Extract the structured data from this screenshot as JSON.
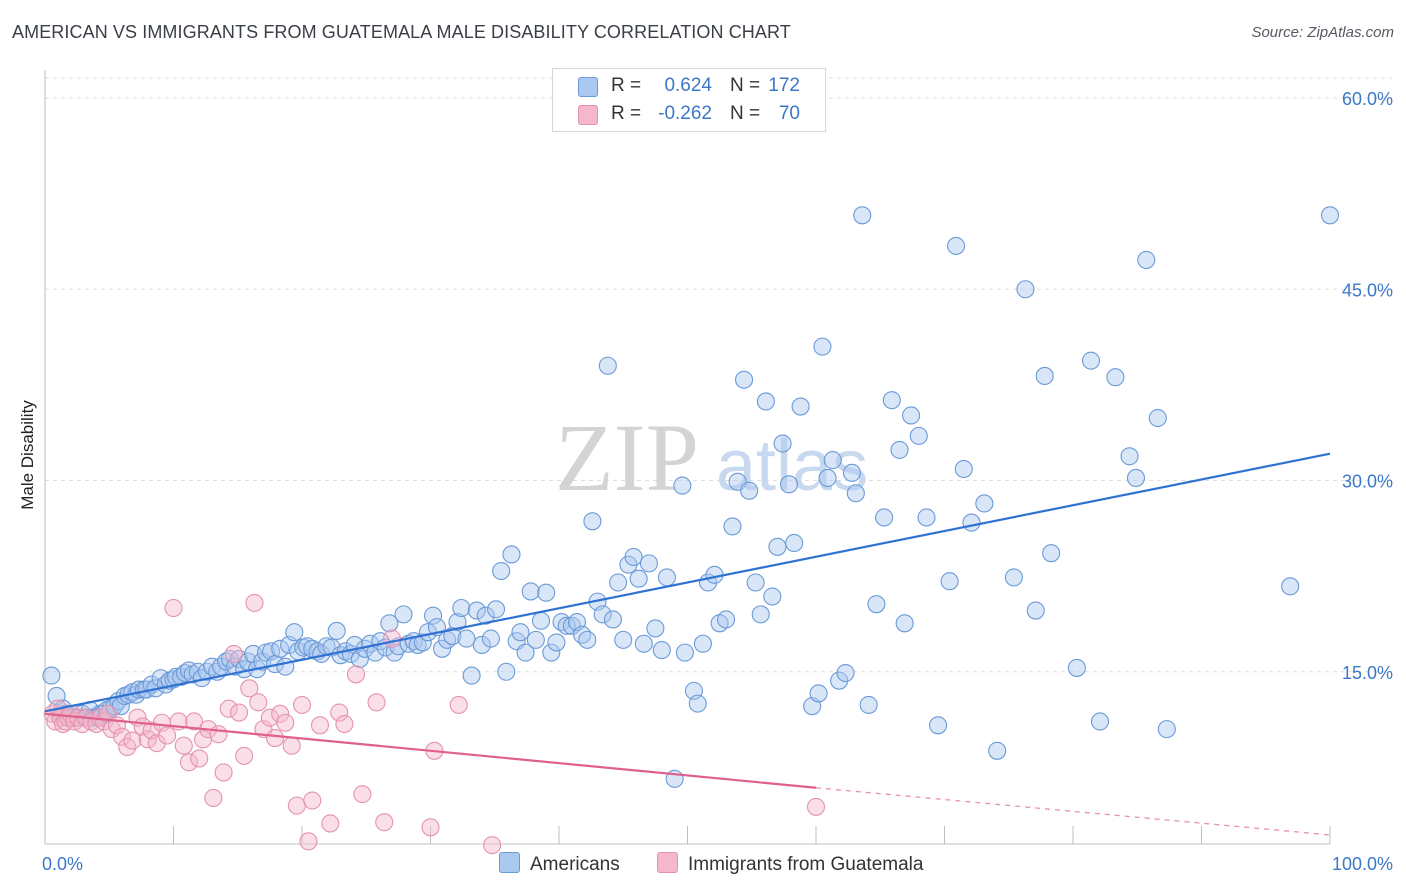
{
  "title": "AMERICAN VS IMMIGRANTS FROM GUATEMALA MALE DISABILITY CORRELATION CHART",
  "source": "Source: ZipAtlas.com",
  "watermark": {
    "zip": "ZIP",
    "atlas": "atlas"
  },
  "legend": {
    "r_label": "R =",
    "n_label": "N =",
    "rows": [
      {
        "r": "0.624",
        "n": "172",
        "swatch_fill": "#aac8f0",
        "swatch_stroke": "#6a9ad8"
      },
      {
        "r": "-0.262",
        "n": "70",
        "swatch_fill": "#f5b8cb",
        "swatch_stroke": "#e493ad"
      }
    ]
  },
  "bottom_legend": [
    {
      "label": "Americans",
      "swatch_fill": "#aac8f0",
      "swatch_stroke": "#6a9ad8"
    },
    {
      "label": "Immigrants from Guatemala",
      "swatch_fill": "#f5b8cb",
      "swatch_stroke": "#e493ad"
    }
  ],
  "chart_data": {
    "type": "scatter",
    "title": "AMERICAN VS IMMIGRANTS FROM GUATEMALA MALE DISABILITY CORRELATION CHART",
    "xlabel": "",
    "ylabel": "Male Disability",
    "xlim": [
      0,
      100
    ],
    "ylim": [
      0,
      62
    ],
    "x_tick_labels": [
      {
        "value": 0,
        "label": "0.0%"
      },
      {
        "value": 100,
        "label": "100.0%"
      }
    ],
    "y_tick_labels": [
      {
        "value": 15,
        "label": "15.0%"
      },
      {
        "value": 30,
        "label": "30.0%"
      },
      {
        "value": 45,
        "label": "45.0%"
      },
      {
        "value": 60,
        "label": "60.0%"
      }
    ],
    "grid": "horizontal dashed",
    "series": [
      {
        "name": "Americans",
        "color": "#6a9ad8",
        "fill": "#aac8f0",
        "trend": {
          "x": [
            0,
            100
          ],
          "y": [
            11.9,
            32.1
          ]
        },
        "points": [
          [
            0.5,
            14.7
          ],
          [
            0.9,
            13.1
          ],
          [
            1.2,
            11.7
          ],
          [
            1.4,
            12.1
          ],
          [
            1.7,
            11.7
          ],
          [
            2.0,
            11.4
          ],
          [
            2.2,
            11.4
          ],
          [
            2.5,
            11.4
          ],
          [
            2.9,
            11.7
          ],
          [
            3.1,
            11.4
          ],
          [
            3.5,
            12.0
          ],
          [
            3.7,
            11.4
          ],
          [
            3.9,
            11.4
          ],
          [
            4.1,
            11.4
          ],
          [
            4.3,
            11.7
          ],
          [
            4.5,
            11.7
          ],
          [
            4.8,
            12.0
          ],
          [
            5.1,
            12.1
          ],
          [
            5.4,
            12.3
          ],
          [
            5.7,
            12.7
          ],
          [
            5.9,
            12.3
          ],
          [
            6.2,
            13.1
          ],
          [
            6.5,
            13.2
          ],
          [
            6.8,
            13.4
          ],
          [
            7.1,
            13.2
          ],
          [
            7.3,
            13.6
          ],
          [
            7.7,
            13.6
          ],
          [
            7.9,
            13.6
          ],
          [
            8.3,
            14.0
          ],
          [
            8.6,
            13.7
          ],
          [
            9.0,
            14.5
          ],
          [
            9.4,
            14.0
          ],
          [
            9.7,
            14.3
          ],
          [
            10.0,
            14.4
          ],
          [
            10.2,
            14.6
          ],
          [
            10.6,
            14.6
          ],
          [
            10.9,
            14.9
          ],
          [
            11.2,
            15.1
          ],
          [
            11.5,
            14.8
          ],
          [
            11.9,
            15.0
          ],
          [
            12.2,
            14.5
          ],
          [
            12.6,
            15.0
          ],
          [
            13.0,
            15.4
          ],
          [
            13.4,
            15.0
          ],
          [
            13.7,
            15.4
          ],
          [
            14.1,
            15.8
          ],
          [
            14.4,
            16.0
          ],
          [
            14.8,
            15.4
          ],
          [
            15.1,
            16.0
          ],
          [
            15.5,
            15.2
          ],
          [
            15.8,
            15.8
          ],
          [
            16.2,
            16.4
          ],
          [
            16.5,
            15.2
          ],
          [
            16.9,
            15.8
          ],
          [
            17.2,
            16.5
          ],
          [
            17.6,
            16.6
          ],
          [
            17.9,
            15.6
          ],
          [
            18.3,
            16.8
          ],
          [
            18.7,
            15.4
          ],
          [
            19.0,
            17.1
          ],
          [
            19.4,
            18.1
          ],
          [
            19.7,
            16.6
          ],
          [
            20.1,
            16.9
          ],
          [
            20.4,
            17.0
          ],
          [
            20.8,
            16.8
          ],
          [
            21.2,
            16.6
          ],
          [
            21.5,
            16.4
          ],
          [
            21.9,
            17.0
          ],
          [
            22.3,
            16.9
          ],
          [
            22.7,
            18.2
          ],
          [
            23.0,
            16.3
          ],
          [
            23.4,
            16.6
          ],
          [
            23.8,
            16.4
          ],
          [
            24.1,
            17.1
          ],
          [
            24.5,
            16.0
          ],
          [
            24.9,
            16.8
          ],
          [
            25.3,
            17.2
          ],
          [
            25.7,
            16.5
          ],
          [
            26.1,
            17.4
          ],
          [
            26.5,
            16.9
          ],
          [
            26.8,
            18.8
          ],
          [
            27.2,
            16.5
          ],
          [
            27.5,
            17.0
          ],
          [
            27.9,
            19.5
          ],
          [
            28.3,
            17.2
          ],
          [
            28.7,
            17.4
          ],
          [
            29.0,
            17.1
          ],
          [
            29.4,
            17.3
          ],
          [
            29.8,
            18.1
          ],
          [
            30.2,
            19.4
          ],
          [
            30.5,
            18.5
          ],
          [
            30.9,
            16.8
          ],
          [
            31.3,
            17.5
          ],
          [
            31.7,
            17.8
          ],
          [
            32.1,
            18.9
          ],
          [
            32.4,
            20.0
          ],
          [
            32.8,
            17.6
          ],
          [
            33.2,
            14.7
          ],
          [
            33.6,
            19.8
          ],
          [
            34.0,
            17.1
          ],
          [
            34.3,
            19.4
          ],
          [
            34.7,
            17.6
          ],
          [
            35.1,
            19.9
          ],
          [
            35.5,
            22.9
          ],
          [
            35.9,
            15.0
          ],
          [
            36.3,
            24.2
          ],
          [
            36.7,
            17.4
          ],
          [
            37.0,
            18.1
          ],
          [
            37.4,
            16.5
          ],
          [
            37.8,
            21.3
          ],
          [
            38.2,
            17.5
          ],
          [
            38.6,
            19.0
          ],
          [
            39.0,
            21.2
          ],
          [
            39.4,
            16.5
          ],
          [
            39.8,
            17.3
          ],
          [
            40.2,
            18.9
          ],
          [
            40.6,
            18.6
          ],
          [
            41.0,
            18.6
          ],
          [
            41.4,
            18.9
          ],
          [
            41.8,
            17.9
          ],
          [
            42.2,
            17.5
          ],
          [
            42.6,
            26.8
          ],
          [
            43.0,
            20.5
          ],
          [
            43.4,
            19.5
          ],
          [
            43.8,
            39.0
          ],
          [
            44.2,
            19.1
          ],
          [
            44.6,
            22.0
          ],
          [
            45.0,
            17.5
          ],
          [
            45.4,
            23.4
          ],
          [
            45.8,
            24.0
          ],
          [
            46.2,
            22.3
          ],
          [
            46.6,
            17.2
          ],
          [
            47.0,
            23.5
          ],
          [
            47.5,
            18.4
          ],
          [
            48.0,
            16.7
          ],
          [
            48.4,
            22.4
          ],
          [
            49.0,
            6.6
          ],
          [
            49.6,
            29.6
          ],
          [
            49.8,
            16.5
          ],
          [
            50.5,
            13.5
          ],
          [
            50.8,
            12.5
          ],
          [
            51.2,
            17.2
          ],
          [
            51.6,
            22.0
          ],
          [
            52.1,
            22.6
          ],
          [
            52.5,
            18.8
          ],
          [
            53.0,
            19.1
          ],
          [
            53.5,
            26.4
          ],
          [
            53.9,
            29.9
          ],
          [
            54.4,
            37.9
          ],
          [
            54.8,
            29.2
          ],
          [
            55.3,
            22.0
          ],
          [
            55.7,
            19.5
          ],
          [
            56.1,
            36.2
          ],
          [
            56.6,
            20.9
          ],
          [
            57.0,
            24.8
          ],
          [
            57.4,
            32.9
          ],
          [
            57.9,
            29.7
          ],
          [
            58.3,
            25.1
          ],
          [
            58.8,
            35.8
          ],
          [
            59.7,
            12.3
          ],
          [
            60.2,
            13.3
          ],
          [
            60.5,
            40.5
          ],
          [
            60.9,
            30.2
          ],
          [
            61.3,
            31.6
          ],
          [
            61.8,
            14.3
          ],
          [
            62.3,
            14.9
          ],
          [
            62.8,
            30.6
          ],
          [
            63.1,
            29.0
          ],
          [
            63.6,
            50.8
          ],
          [
            64.1,
            12.4
          ],
          [
            64.7,
            20.3
          ],
          [
            65.3,
            27.1
          ],
          [
            65.9,
            36.3
          ],
          [
            66.5,
            32.4
          ],
          [
            66.9,
            18.8
          ],
          [
            67.4,
            35.1
          ],
          [
            68.0,
            33.5
          ],
          [
            68.6,
            27.1
          ],
          [
            69.5,
            10.8
          ],
          [
            70.4,
            22.1
          ],
          [
            70.9,
            48.4
          ],
          [
            71.5,
            30.9
          ],
          [
            72.1,
            26.7
          ],
          [
            73.1,
            28.2
          ],
          [
            74.1,
            8.8
          ],
          [
            75.4,
            22.4
          ],
          [
            76.3,
            45.0
          ],
          [
            77.1,
            19.8
          ],
          [
            77.8,
            38.2
          ],
          [
            78.3,
            24.3
          ],
          [
            80.3,
            15.3
          ],
          [
            81.4,
            39.4
          ],
          [
            82.1,
            11.1
          ],
          [
            83.3,
            38.1
          ],
          [
            84.4,
            31.9
          ],
          [
            84.9,
            30.2
          ],
          [
            85.7,
            47.3
          ],
          [
            86.6,
            34.9
          ],
          [
            87.3,
            10.5
          ],
          [
            96.9,
            21.7
          ],
          [
            100.0,
            50.8
          ]
        ]
      },
      {
        "name": "Immigrants from Guatemala",
        "color": "#e493ad",
        "fill": "#f5b8cb",
        "trend": {
          "x": [
            0,
            60
          ],
          "y": [
            11.7,
            5.9
          ]
        },
        "trend_dashed_extension": {
          "x": [
            60,
            100
          ],
          "y": [
            5.9,
            2.2
          ]
        },
        "points": [
          [
            0.6,
            11.7
          ],
          [
            0.8,
            11.1
          ],
          [
            1.0,
            12.1
          ],
          [
            1.2,
            11.4
          ],
          [
            1.4,
            10.9
          ],
          [
            1.6,
            11.1
          ],
          [
            1.8,
            11.4
          ],
          [
            2.0,
            11.7
          ],
          [
            2.3,
            11.1
          ],
          [
            2.6,
            11.4
          ],
          [
            2.9,
            10.9
          ],
          [
            3.2,
            11.4
          ],
          [
            3.6,
            11.1
          ],
          [
            4.0,
            10.9
          ],
          [
            4.3,
            11.4
          ],
          [
            4.6,
            11.1
          ],
          [
            4.9,
            11.7
          ],
          [
            5.2,
            10.5
          ],
          [
            5.6,
            10.8
          ],
          [
            6.0,
            9.9
          ],
          [
            6.4,
            9.1
          ],
          [
            6.8,
            9.6
          ],
          [
            7.2,
            11.4
          ],
          [
            7.6,
            10.7
          ],
          [
            8.0,
            9.7
          ],
          [
            8.3,
            10.4
          ],
          [
            8.7,
            9.4
          ],
          [
            9.1,
            11.0
          ],
          [
            9.5,
            10.0
          ],
          [
            10.0,
            20.0
          ],
          [
            10.4,
            11.1
          ],
          [
            10.8,
            9.2
          ],
          [
            11.2,
            7.9
          ],
          [
            11.6,
            11.1
          ],
          [
            12.0,
            8.2
          ],
          [
            12.3,
            9.7
          ],
          [
            12.7,
            10.5
          ],
          [
            13.1,
            5.1
          ],
          [
            13.5,
            10.1
          ],
          [
            13.9,
            7.1
          ],
          [
            14.3,
            12.1
          ],
          [
            14.7,
            16.4
          ],
          [
            15.1,
            11.8
          ],
          [
            15.5,
            8.4
          ],
          [
            15.9,
            13.7
          ],
          [
            16.3,
            20.4
          ],
          [
            16.6,
            12.6
          ],
          [
            17.0,
            10.5
          ],
          [
            17.5,
            11.4
          ],
          [
            17.9,
            9.8
          ],
          [
            18.3,
            11.7
          ],
          [
            18.7,
            11.0
          ],
          [
            19.2,
            9.2
          ],
          [
            19.6,
            4.5
          ],
          [
            20.0,
            12.4
          ],
          [
            20.5,
            1.7
          ],
          [
            20.8,
            4.9
          ],
          [
            21.4,
            10.8
          ],
          [
            22.2,
            3.1
          ],
          [
            22.9,
            11.8
          ],
          [
            23.3,
            10.9
          ],
          [
            24.2,
            14.8
          ],
          [
            24.7,
            5.4
          ],
          [
            25.8,
            12.6
          ],
          [
            26.4,
            3.2
          ],
          [
            27.0,
            17.6
          ],
          [
            30.0,
            2.8
          ],
          [
            30.3,
            8.8
          ],
          [
            32.2,
            12.4
          ],
          [
            34.8,
            1.4
          ],
          [
            60.0,
            4.4
          ]
        ]
      }
    ]
  }
}
